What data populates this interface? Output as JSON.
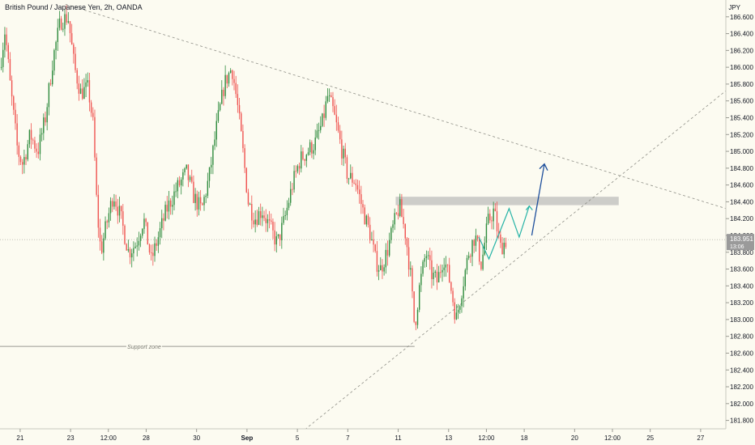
{
  "header": {
    "title": "British Pound / Japanese Yen, 2h, OANDA",
    "currency": "JPY"
  },
  "chart_data": {
    "type": "candlestick",
    "symbol": "British Pound / Japanese Yen",
    "interval": "2h",
    "source": "OANDA",
    "ylim": [
      181.7,
      186.8
    ],
    "y_ticks": [
      "186.600",
      "186.400",
      "186.200",
      "186.000",
      "185.800",
      "185.600",
      "185.400",
      "185.200",
      "185.000",
      "184.800",
      "184.600",
      "184.400",
      "184.200",
      "184.000",
      "183.800",
      "183.600",
      "183.400",
      "183.200",
      "183.000",
      "182.800",
      "182.600",
      "182.400",
      "182.200",
      "182.000",
      "181.800"
    ],
    "x_ticks": [
      {
        "label": "21",
        "pos": 0.8
      },
      {
        "label": "23",
        "pos": 2.8
      },
      {
        "label": "12:00",
        "pos": 4.3
      },
      {
        "label": "28",
        "pos": 5.8
      },
      {
        "label": "30",
        "pos": 7.8
      },
      {
        "label": "Sep",
        "pos": 9.8
      },
      {
        "label": "5",
        "pos": 11.8
      },
      {
        "label": "7",
        "pos": 13.8
      },
      {
        "label": "11",
        "pos": 15.8
      },
      {
        "label": "13",
        "pos": 17.8
      },
      {
        "label": "12:00",
        "pos": 19.3
      },
      {
        "label": "18",
        "pos": 20.8
      },
      {
        "label": "20",
        "pos": 22.8
      },
      {
        "label": "12:00",
        "pos": 24.3
      },
      {
        "label": "25",
        "pos": 25.8
      },
      {
        "label": "27",
        "pos": 27.8
      }
    ],
    "x_span": 28.8,
    "last_price": {
      "value": "183.951",
      "countdown": "13:06",
      "level": 183.95
    },
    "color_up": "#26a69a",
    "color_up_body": "#2e8b3d",
    "color_down": "#ef5350",
    "annotations": {
      "support_label": "Support zone",
      "support_level": 182.68,
      "resistance_zone": [
        184.36,
        184.46
      ],
      "resistance_x": [
        15.7,
        24.55
      ],
      "descending_trendline": [
        {
          "x": 2.6,
          "y": 186.75
        },
        {
          "x": 28.8,
          "y": 184.32
        }
      ],
      "ascending_trendline": [
        {
          "x": 11.8,
          "y": 181.62
        },
        {
          "x": 28.8,
          "y": 185.72
        }
      ],
      "projection_teal": [
        {
          "x": 19.0,
          "y": 183.98
        },
        {
          "x": 19.4,
          "y": 183.72
        },
        {
          "x": 20.2,
          "y": 184.32
        },
        {
          "x": 20.6,
          "y": 183.98
        },
        {
          "x": 21.0,
          "y": 184.35
        }
      ],
      "projection_blue": [
        {
          "x": 21.1,
          "y": 184.0
        },
        {
          "x": 21.6,
          "y": 184.85
        }
      ]
    },
    "anchors": [
      {
        "x": 0,
        "y": 186.0
      },
      {
        "x": 0.2,
        "y": 186.45
      },
      {
        "x": 0.4,
        "y": 185.8
      },
      {
        "x": 0.7,
        "y": 185.0
      },
      {
        "x": 0.9,
        "y": 184.85
      },
      {
        "x": 1.2,
        "y": 185.2
      },
      {
        "x": 1.5,
        "y": 185.0
      },
      {
        "x": 1.8,
        "y": 185.4
      },
      {
        "x": 2.1,
        "y": 186.1
      },
      {
        "x": 2.4,
        "y": 186.55
      },
      {
        "x": 2.7,
        "y": 186.6
      },
      {
        "x": 2.95,
        "y": 186.0
      },
      {
        "x": 3.2,
        "y": 185.7
      },
      {
        "x": 3.5,
        "y": 185.75
      },
      {
        "x": 3.7,
        "y": 185.3
      },
      {
        "x": 3.85,
        "y": 184.3
      },
      {
        "x": 4.0,
        "y": 183.8
      },
      {
        "x": 4.2,
        "y": 184.1
      },
      {
        "x": 4.5,
        "y": 184.5
      },
      {
        "x": 4.8,
        "y": 184.2
      },
      {
        "x": 5.1,
        "y": 183.8
      },
      {
        "x": 5.4,
        "y": 183.9
      },
      {
        "x": 5.7,
        "y": 184.2
      },
      {
        "x": 6.0,
        "y": 183.7
      },
      {
        "x": 6.3,
        "y": 184.0
      },
      {
        "x": 6.6,
        "y": 184.3
      },
      {
        "x": 7.0,
        "y": 184.55
      },
      {
        "x": 7.4,
        "y": 184.75
      },
      {
        "x": 7.7,
        "y": 184.45
      },
      {
        "x": 8.0,
        "y": 184.3
      },
      {
        "x": 8.3,
        "y": 184.7
      },
      {
        "x": 8.6,
        "y": 185.3
      },
      {
        "x": 8.9,
        "y": 185.8
      },
      {
        "x": 9.2,
        "y": 186.0
      },
      {
        "x": 9.4,
        "y": 185.6
      },
      {
        "x": 9.6,
        "y": 185.1
      },
      {
        "x": 9.85,
        "y": 184.4
      },
      {
        "x": 10.1,
        "y": 184.2
      },
      {
        "x": 10.4,
        "y": 184.3
      },
      {
        "x": 10.7,
        "y": 184.1
      },
      {
        "x": 11.0,
        "y": 183.9
      },
      {
        "x": 11.3,
        "y": 184.2
      },
      {
        "x": 11.6,
        "y": 184.6
      },
      {
        "x": 11.9,
        "y": 184.9
      },
      {
        "x": 12.2,
        "y": 185.0
      },
      {
        "x": 12.5,
        "y": 185.1
      },
      {
        "x": 12.8,
        "y": 185.35
      },
      {
        "x": 13.0,
        "y": 185.65
      },
      {
        "x": 13.2,
        "y": 185.5
      },
      {
        "x": 13.5,
        "y": 185.1
      },
      {
        "x": 13.8,
        "y": 184.7
      },
      {
        "x": 14.1,
        "y": 184.65
      },
      {
        "x": 14.4,
        "y": 184.3
      },
      {
        "x": 14.7,
        "y": 184.0
      },
      {
        "x": 14.9,
        "y": 183.7
      },
      {
        "x": 15.1,
        "y": 183.6
      },
      {
        "x": 15.35,
        "y": 183.8
      },
      {
        "x": 15.6,
        "y": 184.1
      },
      {
        "x": 15.85,
        "y": 184.35
      },
      {
        "x": 16.1,
        "y": 184.0
      },
      {
        "x": 16.3,
        "y": 183.5
      },
      {
        "x": 16.45,
        "y": 182.9
      },
      {
        "x": 16.65,
        "y": 183.4
      },
      {
        "x": 16.9,
        "y": 183.8
      },
      {
        "x": 17.1,
        "y": 183.55
      },
      {
        "x": 17.35,
        "y": 183.45
      },
      {
        "x": 17.6,
        "y": 183.75
      },
      {
        "x": 17.85,
        "y": 183.45
      },
      {
        "x": 18.1,
        "y": 183.0
      },
      {
        "x": 18.35,
        "y": 183.4
      },
      {
        "x": 18.6,
        "y": 183.8
      },
      {
        "x": 18.85,
        "y": 184.0
      },
      {
        "x": 19.1,
        "y": 183.65
      },
      {
        "x": 19.35,
        "y": 184.15
      },
      {
        "x": 19.6,
        "y": 184.3
      },
      {
        "x": 19.85,
        "y": 183.85
      },
      {
        "x": 20.1,
        "y": 183.95
      }
    ]
  }
}
